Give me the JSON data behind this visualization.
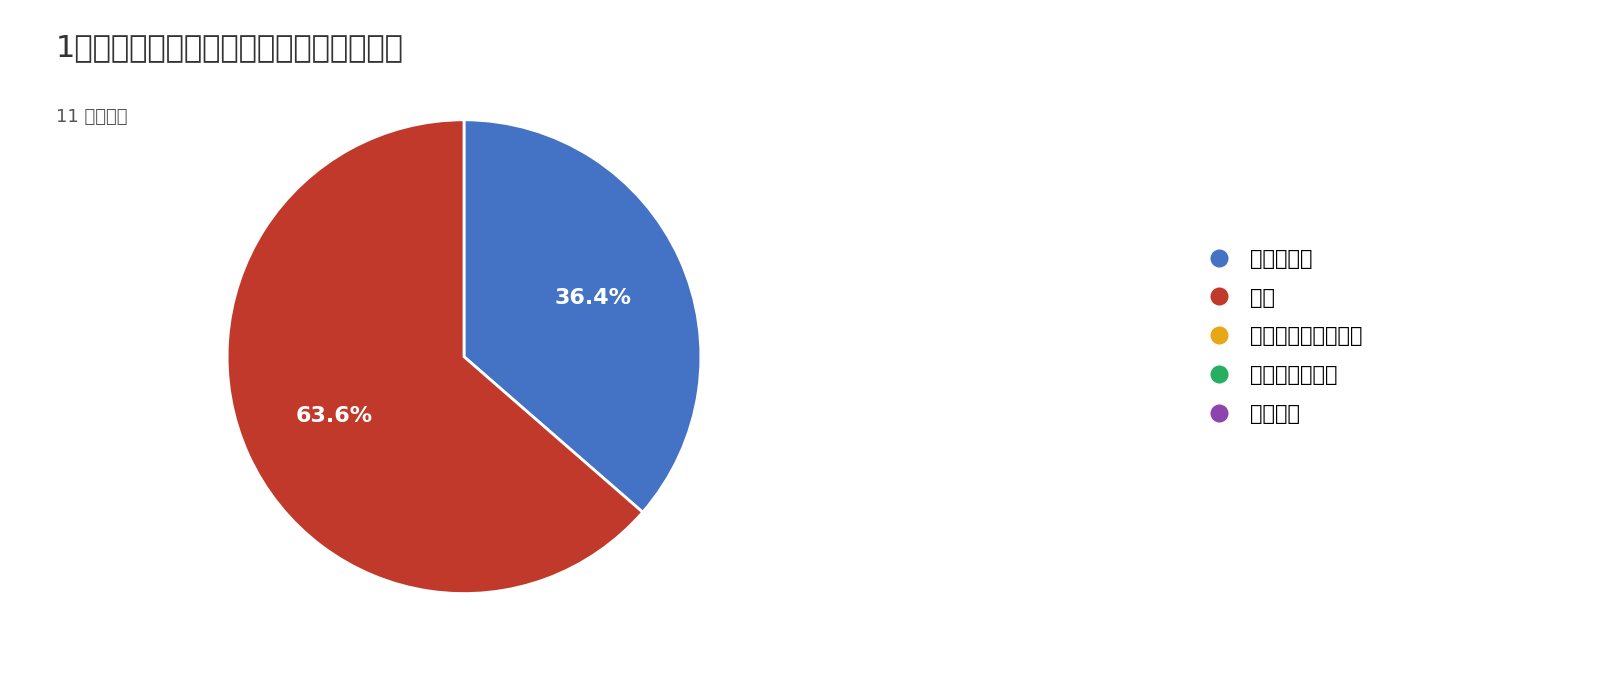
{
  "title": "1．　視覚障害者の就労事例紹介について",
  "subtitle": "11 件の回答",
  "slices": [
    36.4,
    63.6
  ],
  "slice_labels": [
    "36.4%",
    "63.6%"
  ],
  "slice_colors": [
    "#4472C4",
    "#C0392B"
  ],
  "legend_labels": [
    "とてもよい",
    "よい",
    "どちらとも言えない",
    "あまりよくない",
    "よくない"
  ],
  "legend_colors": [
    "#4472C4",
    "#C0392B",
    "#E6A817",
    "#27AE60",
    "#8E44AD"
  ],
  "background_color": "#ffffff",
  "title_fontsize": 22,
  "subtitle_fontsize": 13,
  "label_fontsize": 16,
  "legend_fontsize": 15,
  "startangle": 90
}
